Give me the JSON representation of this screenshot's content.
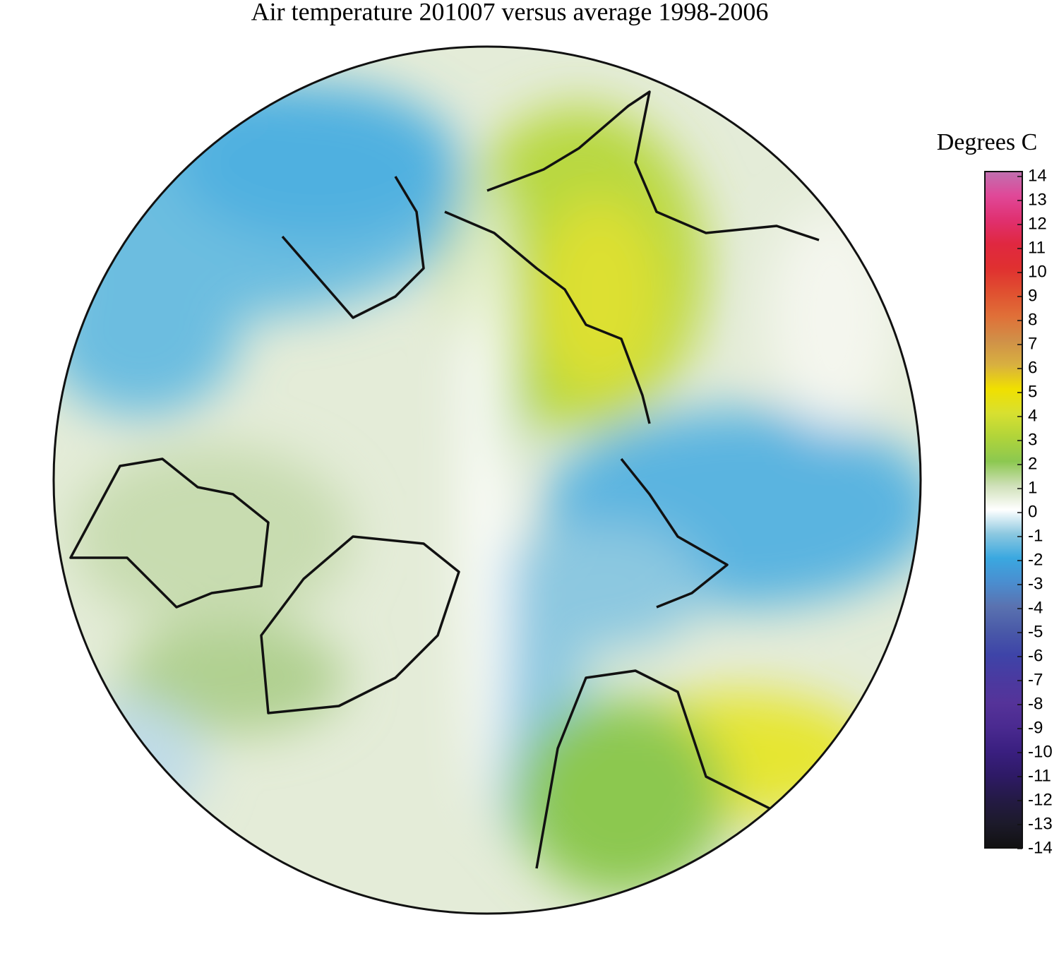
{
  "chart_data": {
    "type": "colormap",
    "title": "Air temperature 201007 versus average 1998-2006",
    "colorbar": {
      "label": "Degrees C",
      "lim": [
        -14,
        14
      ],
      "ticks": [
        -14,
        -13,
        -12,
        -11,
        -10,
        -9,
        -8,
        -7,
        -6,
        -5,
        -4,
        -3,
        -2,
        -1,
        0,
        1,
        2,
        3,
        4,
        5,
        6,
        7,
        8,
        9,
        10,
        11,
        12,
        13,
        14
      ],
      "colors": [
        "#111111",
        "#1c1a2a",
        "#241a45",
        "#2e1a66",
        "#3a1f80",
        "#4a2a90",
        "#553399",
        "#4a3aa0",
        "#3e44a8",
        "#4a5aa8",
        "#5a72b0",
        "#4a8ed0",
        "#3aa8e0",
        "#8cc8e0",
        "#ffffff",
        "#cfe0b8",
        "#8cc850",
        "#b0d43a",
        "#d8e030",
        "#f0e000",
        "#d8b040",
        "#d09048",
        "#e07038",
        "#e05030",
        "#e03030",
        "#e02840",
        "#e03070",
        "#e04898",
        "#c070b0"
      ]
    }
  }
}
